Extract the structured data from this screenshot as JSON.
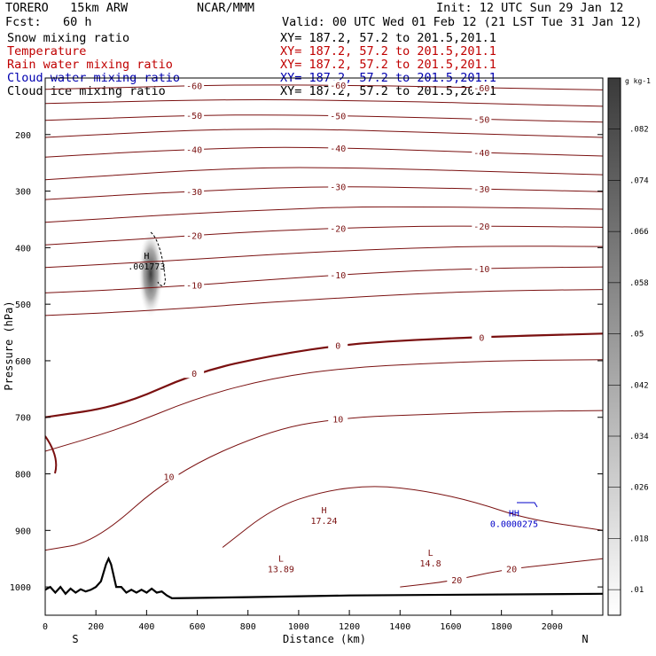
{
  "header": {
    "model": "TORERO   15km ARW",
    "org": "NCAR/MMM",
    "init": "Init: 12 UTC Sun 29 Jan 12",
    "fcst": "Fcst:   60 h",
    "valid": "Valid: 00 UTC Wed 01 Feb 12 (21 LST Tue 31 Jan 12)"
  },
  "fields": [
    {
      "label": "Snow mixing ratio",
      "xy": "XY= 187.2, 57.2 to 201.5,201.1",
      "color": "#000000"
    },
    {
      "label": "Temperature",
      "xy": "XY= 187.2, 57.2 to 201.5,201.1",
      "color": "#c00000"
    },
    {
      "label": "Rain water mixing ratio",
      "xy": "XY= 187.2, 57.2 to 201.5,201.1",
      "color": "#c00000"
    },
    {
      "label": "Cloud water mixing ratio",
      "xy": "XY= 187.2, 57.2 to 201.5,201.1",
      "color": "#0000b0"
    },
    {
      "label": "Cloud ice mixing ratio",
      "xy": "XY= 187.2, 57.2 to 201.5,201.1",
      "color": "#000000"
    }
  ],
  "colors": {
    "temperature": "#7a1010",
    "cloud_water": "#0000c8",
    "frame": "#000000"
  },
  "chart_data": {
    "type": "contour",
    "xlabel": "Distance (km)",
    "ylabel": "Pressure (hPa)",
    "xlim": [
      0,
      2200
    ],
    "ylim": [
      1050,
      100
    ],
    "xticks": [
      "0",
      "200",
      "400",
      "600",
      "800",
      "1000",
      "1200",
      "1400",
      "1600",
      "1800",
      "2000"
    ],
    "yticks": [
      "200",
      "300",
      "400",
      "500",
      "600",
      "700",
      "800",
      "900",
      "1000"
    ],
    "direction_labels": {
      "left": "S",
      "right": "N"
    },
    "colorbar": {
      "unit": "g kg-1",
      "ticks": [
        ".01",
        ".018",
        ".026",
        ".034",
        ".042",
        ".05",
        ".058",
        ".066",
        ".074",
        ".082"
      ],
      "range": [
        0.006,
        0.09
      ]
    },
    "temperature_contours": [
      {
        "level": -60,
        "label": "-60",
        "x": [
          0,
          300,
          600,
          900,
          1200,
          1500,
          1800,
          2200
        ],
        "p": [
          120,
          117,
          113,
          112,
          113,
          115,
          118,
          121
        ]
      },
      {
        "level": -55,
        "label": "",
        "x": [
          0,
          300,
          600,
          900,
          1200,
          1500,
          1800,
          2200
        ],
        "p": [
          145,
          142,
          139,
          138,
          140,
          142,
          146,
          150
        ]
      },
      {
        "level": -50,
        "label": "-50",
        "x": [
          0,
          300,
          600,
          900,
          1200,
          1500,
          1800,
          2200
        ],
        "p": [
          175,
          170,
          166,
          165,
          167,
          170,
          174,
          178
        ]
      },
      {
        "level": -45,
        "label": "",
        "x": [
          0,
          300,
          600,
          900,
          1200,
          1500,
          1800,
          2200
        ],
        "p": [
          205,
          198,
          192,
          190,
          192,
          196,
          200,
          205
        ]
      },
      {
        "level": -40,
        "label": "-40",
        "x": [
          0,
          300,
          600,
          900,
          1200,
          1500,
          1800,
          2200
        ],
        "p": [
          240,
          232,
          226,
          222,
          224,
          228,
          233,
          238
        ]
      },
      {
        "level": -35,
        "label": "",
        "x": [
          0,
          300,
          600,
          900,
          1200,
          1500,
          1800,
          2200
        ],
        "p": [
          280,
          271,
          263,
          258,
          259,
          262,
          266,
          271
        ]
      },
      {
        "level": -30,
        "label": "-30",
        "x": [
          0,
          300,
          600,
          900,
          1200,
          1500,
          1800,
          2200
        ],
        "p": [
          315,
          307,
          300,
          294,
          292,
          294,
          297,
          301
        ]
      },
      {
        "level": -25,
        "label": "",
        "x": [
          0,
          300,
          600,
          900,
          1200,
          1500,
          1800,
          2200
        ],
        "p": [
          355,
          347,
          339,
          333,
          328,
          328,
          329,
          332
        ]
      },
      {
        "level": -20,
        "label": "-20",
        "x": [
          0,
          300,
          600,
          900,
          1200,
          1500,
          1800,
          2200
        ],
        "p": [
          395,
          387,
          378,
          370,
          365,
          362,
          362,
          364
        ]
      },
      {
        "level": -15,
        "label": "",
        "x": [
          0,
          300,
          600,
          900,
          1200,
          1500,
          1800,
          2200
        ],
        "p": [
          435,
          428,
          420,
          412,
          405,
          400,
          397,
          398
        ]
      },
      {
        "level": -10,
        "label": "-10",
        "x": [
          0,
          300,
          600,
          900,
          1200,
          1500,
          1800,
          2200
        ],
        "p": [
          480,
          474,
          466,
          456,
          447,
          440,
          436,
          434
        ]
      },
      {
        "level": -5,
        "label": "",
        "x": [
          0,
          300,
          600,
          900,
          1200,
          1500,
          1800,
          2200
        ],
        "p": [
          520,
          514,
          506,
          496,
          488,
          481,
          476,
          474
        ]
      },
      {
        "level": 0,
        "label": "0",
        "x": [
          0,
          300,
          600,
          900,
          1200,
          1500,
          1800,
          2200
        ],
        "p": [
          700,
          680,
          620,
          590,
          570,
          562,
          557,
          552
        ]
      },
      {
        "level": 5,
        "label": "",
        "x": [
          0,
          300,
          600,
          900,
          1200,
          1500,
          1800,
          2200
        ],
        "p": [
          760,
          720,
          665,
          630,
          612,
          605,
          600,
          598
        ]
      },
      {
        "level": 10,
        "label": "10",
        "x": [
          0,
          200,
          500,
          900,
          1200,
          1500,
          1800,
          2200
        ],
        "p": [
          935,
          920,
          800,
          720,
          700,
          695,
          690,
          688
        ]
      },
      {
        "level": 15,
        "label": "",
        "x": [
          700,
          900,
          1100,
          1300,
          1500,
          1700,
          1900,
          2200
        ],
        "p": [
          930,
          860,
          830,
          820,
          830,
          850,
          880,
          900
        ]
      },
      {
        "level": 20,
        "label": "20",
        "x": [
          1400,
          1600,
          1800,
          2000,
          2200
        ],
        "p": [
          1000,
          990,
          970,
          960,
          950
        ]
      }
    ],
    "centers": [
      {
        "type": "H",
        "value": ".001773",
        "x": 400,
        "p": 420,
        "field": "Snow mixing ratio"
      },
      {
        "type": "H",
        "value": "17.24",
        "x": 1100,
        "p": 870,
        "field": "Temperature"
      },
      {
        "type": "L",
        "value": "13.89",
        "x": 930,
        "p": 955,
        "field": "Temperature"
      },
      {
        "type": "L",
        "value": "14.8",
        "x": 1520,
        "p": 945,
        "field": "Temperature"
      },
      {
        "type": "HH",
        "value": "0.0000275",
        "x": 1850,
        "p": 875,
        "field": "Cloud water mixing ratio"
      }
    ],
    "terrain": {
      "x": [
        0,
        20,
        40,
        60,
        80,
        100,
        120,
        140,
        160,
        180,
        200,
        220,
        240,
        250,
        260,
        280,
        300,
        320,
        340,
        360,
        380,
        400,
        420,
        440,
        460,
        480,
        500,
        800,
        1200,
        2200
      ],
      "p": [
        1005,
        1000,
        1010,
        1000,
        1012,
        1003,
        1010,
        1004,
        1008,
        1005,
        1000,
        990,
        960,
        950,
        960,
        1000,
        1000,
        1010,
        1005,
        1010,
        1005,
        1010,
        1003,
        1010,
        1008,
        1015,
        1020,
        1018,
        1015,
        1012
      ]
    }
  }
}
